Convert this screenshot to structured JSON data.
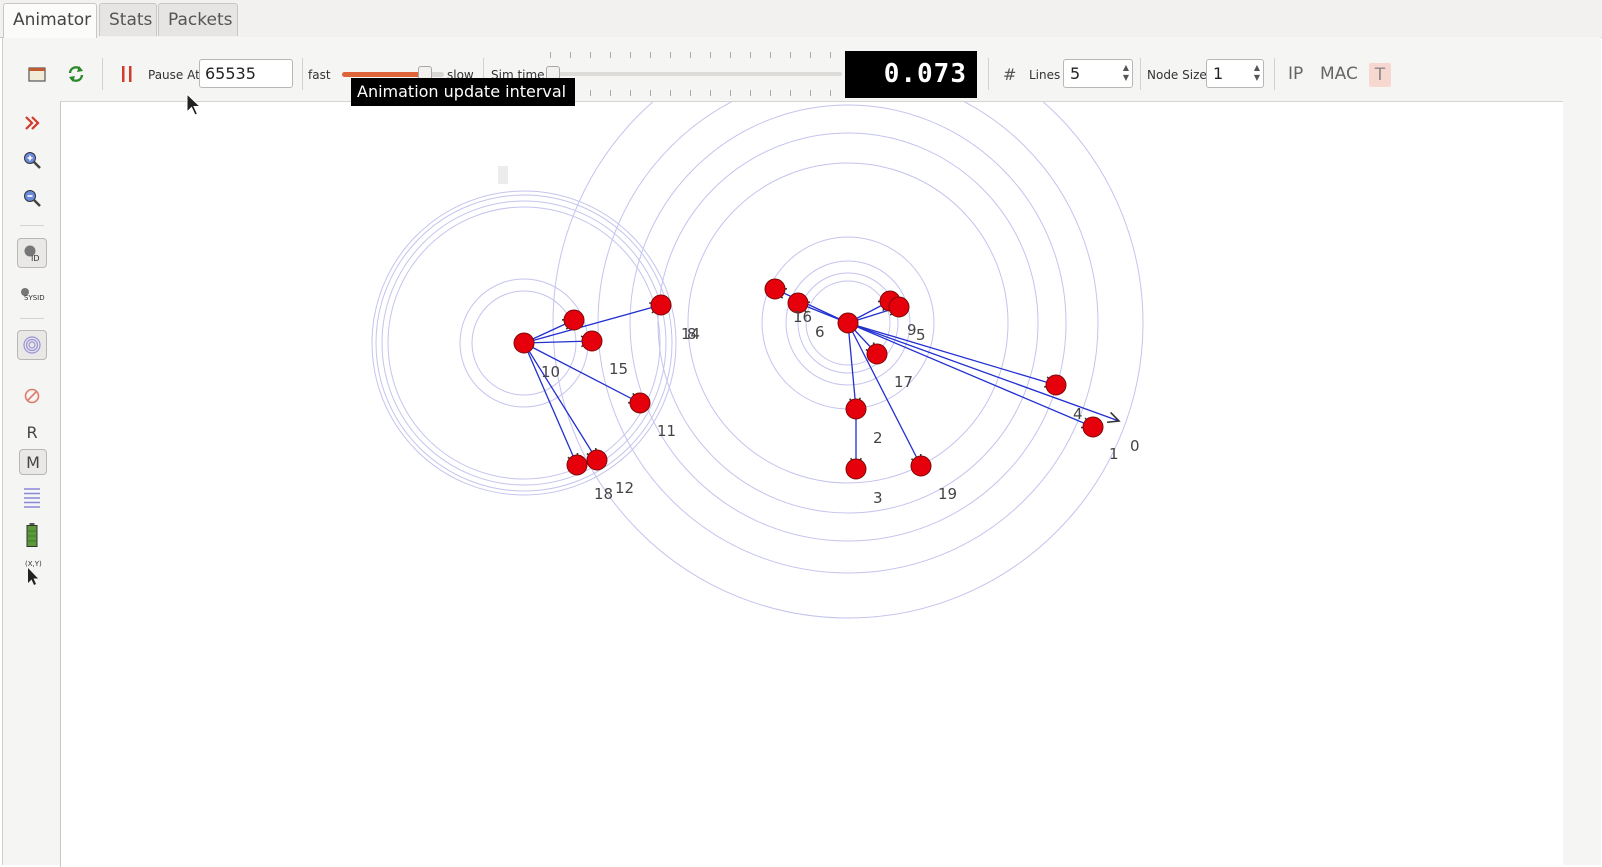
{
  "tabs": [
    "Animator",
    "Stats",
    "Packets"
  ],
  "toolbar": {
    "pause_at_label": "Pause At",
    "pause_at_value": "65535",
    "fast_label": "fast",
    "slow_label": "slow",
    "sim_time_label": "Sim time",
    "sim_time_value": "0.073",
    "lines_label": "Lines",
    "lines_value": "5",
    "node_size_label": "Node Size",
    "node_size_value": "1",
    "ip_label": "IP",
    "mac_label": "MAC",
    "t_label": "T",
    "hash_label": "#",
    "tooltip": "Animation update interval"
  },
  "left_toolbar": {
    "r_label": "R",
    "m_label": "M",
    "sysid_label": "SYSID",
    "xy_label": "(X,Y)"
  },
  "colors": {
    "node_fill": "#e5000b",
    "link_stroke": "#2230d0",
    "range_circle": "#c4c4ee",
    "accent_pause": "#d23b2b",
    "lcd_bg": "#000000"
  },
  "nodes": [
    {
      "id": "0",
      "label": "0"
    },
    {
      "id": "1",
      "label": "1"
    },
    {
      "id": "2",
      "label": "2"
    },
    {
      "id": "3",
      "label": "3"
    },
    {
      "id": "4",
      "label": "4"
    },
    {
      "id": "5",
      "label": "5"
    },
    {
      "id": "6",
      "label": "6"
    },
    {
      "id": "8",
      "label": "8"
    },
    {
      "id": "9",
      "label": "9"
    },
    {
      "id": "10",
      "label": "10"
    },
    {
      "id": "11",
      "label": "11"
    },
    {
      "id": "12",
      "label": "12"
    },
    {
      "id": "14",
      "label": "14"
    },
    {
      "id": "15",
      "label": "15"
    },
    {
      "id": "16",
      "label": "16"
    },
    {
      "id": "17",
      "label": "17"
    },
    {
      "id": "18",
      "label": "18"
    },
    {
      "id": "19",
      "label": "19"
    }
  ]
}
